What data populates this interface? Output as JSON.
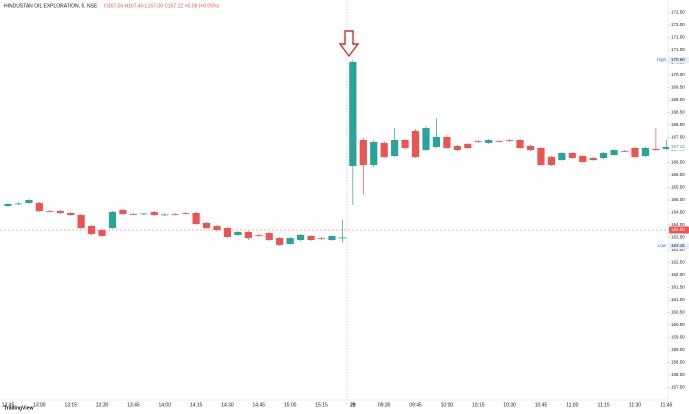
{
  "chart_data": {
    "type": "candlestick",
    "title": "HINDUSTAN OIL EXPLORATION, 5, NSE",
    "ohlc_text": "O167.04 H167.40 L167.00 C167.12 +0.08 (+0.05%)",
    "watermark": "TradingView",
    "up_color": "#26a69a",
    "down_color": "#ef5350",
    "grid": false,
    "categories": [
      "12:45",
      null,
      null,
      "13:00",
      null,
      null,
      "13:15",
      null,
      null,
      "13:30",
      null,
      null,
      "13:45",
      null,
      null,
      "14:00",
      null,
      null,
      "14:15",
      null,
      null,
      "14:30",
      null,
      null,
      "14:45",
      null,
      null,
      "15:00",
      null,
      null,
      "15:15",
      null,
      null,
      "28",
      null,
      null,
      "09:30",
      null,
      null,
      "09:45",
      null,
      null,
      "10:00",
      null,
      null,
      "10:15",
      null,
      null,
      "10:30",
      null,
      null,
      "10:45",
      null,
      null,
      "11:00",
      null,
      null,
      "11:15",
      null,
      null,
      "11:30",
      null,
      null,
      "11:45"
    ],
    "open": [
      164.76,
      164.84,
      164.88,
      164.88,
      164.56,
      164.56,
      164.48,
      164.4,
      163.96,
      163.8,
      163.88,
      164.6,
      164.44,
      164.44,
      164.52,
      164.4,
      164.44,
      164.48,
      164.48,
      164.08,
      163.96,
      163.88,
      163.6,
      163.72,
      163.6,
      163.68,
      163.48,
      163.24,
      163.4,
      163.56,
      163.48,
      163.4,
      163.48,
      166.36,
      167.4,
      166.4,
      167.28,
      166.76,
      167.4,
      167.76,
      167.0,
      167.12,
      167.52,
      167.16,
      167.24,
      167.36,
      167.28,
      167.36,
      167.4,
      167.4,
      167.16,
      167.08,
      166.72,
      166.6,
      166.88,
      166.76,
      166.68,
      166.68,
      166.8,
      166.96,
      167.08,
      166.76,
      167.04,
      167.04
    ],
    "high": [
      164.88,
      164.92,
      165.04,
      164.92,
      164.6,
      164.6,
      164.52,
      164.44,
      164.0,
      163.84,
      164.56,
      164.64,
      164.48,
      164.48,
      164.56,
      164.48,
      164.48,
      164.52,
      164.52,
      164.12,
      164.0,
      163.92,
      163.76,
      163.76,
      163.64,
      163.72,
      163.52,
      163.52,
      163.64,
      163.6,
      163.52,
      163.6,
      164.2,
      170.6,
      167.48,
      167.4,
      167.36,
      167.88,
      167.44,
      167.84,
      167.96,
      168.28,
      167.6,
      167.2,
      167.28,
      167.4,
      167.44,
      167.4,
      167.44,
      167.44,
      167.2,
      167.12,
      166.76,
      166.92,
      166.92,
      166.8,
      166.72,
      166.92,
      167.04,
      167.0,
      167.12,
      167.12,
      167.88,
      167.4
    ],
    "low": [
      164.72,
      164.8,
      164.84,
      164.52,
      164.52,
      164.44,
      164.36,
      163.84,
      163.6,
      163.52,
      163.84,
      164.4,
      164.4,
      164.4,
      164.36,
      164.36,
      164.4,
      164.44,
      164.0,
      163.84,
      163.76,
      163.48,
      163.56,
      163.4,
      163.52,
      163.36,
      163.16,
      163.2,
      163.36,
      163.36,
      163.4,
      163.36,
      163.28,
      164.8,
      165.2,
      166.32,
      166.68,
      166.72,
      167.0,
      166.68,
      166.96,
      167.08,
      167.04,
      166.96,
      167.04,
      167.28,
      167.24,
      167.32,
      167.32,
      167.04,
      166.96,
      166.36,
      166.36,
      166.56,
      166.64,
      166.48,
      166.56,
      166.64,
      166.76,
      166.92,
      166.68,
      166.72,
      166.96,
      167.0
    ],
    "close": [
      164.84,
      164.86,
      165.0,
      164.56,
      164.54,
      164.48,
      164.4,
      163.88,
      163.64,
      163.56,
      164.52,
      164.44,
      164.42,
      164.46,
      164.4,
      164.42,
      164.42,
      164.46,
      164.04,
      163.88,
      163.8,
      163.52,
      163.72,
      163.48,
      163.58,
      163.4,
      163.2,
      163.48,
      163.6,
      163.4,
      163.46,
      163.56,
      163.5,
      170.52,
      166.4,
      167.32,
      166.72,
      167.4,
      167.08,
      166.72,
      167.88,
      167.52,
      167.08,
      167.0,
      167.08,
      167.34,
      167.4,
      167.34,
      167.38,
      167.08,
      167.0,
      166.4,
      166.4,
      166.88,
      166.68,
      166.52,
      166.6,
      166.88,
      167.0,
      166.94,
      166.72,
      167.08,
      167.0,
      167.12
    ],
    "ylim": [
      157.0,
      173.0
    ],
    "yticks": [
      {
        "value": 172.5,
        "label": "172.50"
      },
      {
        "value": 172,
        "label": "172.00"
      },
      {
        "value": 171.5,
        "label": "171.50"
      },
      {
        "value": 171,
        "label": "171.00"
      },
      {
        "value": 170.5,
        "label": "170.50"
      },
      {
        "value": 170,
        "label": "170.00"
      },
      {
        "value": 169.5,
        "label": "169.50"
      },
      {
        "value": 169,
        "label": "169.00"
      },
      {
        "value": 168.5,
        "label": "168.50"
      },
      {
        "value": 168,
        "label": "168.00"
      },
      {
        "value": 167.5,
        "label": "167.50"
      },
      {
        "value": 167,
        "label": "167.00"
      },
      {
        "value": 166.5,
        "label": "166.50"
      },
      {
        "value": 166,
        "label": "166.00"
      },
      {
        "value": 165.5,
        "label": "165.50"
      },
      {
        "value": 165,
        "label": "165.00"
      },
      {
        "value": 164.5,
        "label": "164.50"
      },
      {
        "value": 164,
        "label": "164.00"
      },
      {
        "value": 163.5,
        "label": "163.50"
      },
      {
        "value": 163,
        "label": "163.00"
      },
      {
        "value": 162.5,
        "label": "162.50"
      },
      {
        "value": 162,
        "label": "162.00"
      },
      {
        "value": 161.5,
        "label": "161.50"
      },
      {
        "value": 161,
        "label": "161.00"
      },
      {
        "value": 160.5,
        "label": "160.50"
      },
      {
        "value": 160,
        "label": "160.00"
      },
      {
        "value": 159.5,
        "label": "159.50"
      },
      {
        "value": 159,
        "label": "159.00"
      },
      {
        "value": 158.5,
        "label": "158.50"
      },
      {
        "value": 158,
        "label": "158.00"
      },
      {
        "value": 157.5,
        "label": "157.50"
      }
    ],
    "high_marker": {
      "name": "High",
      "value": 170.6,
      "value_label": "170.60"
    },
    "low_marker": {
      "name": "Low",
      "value": 163.16,
      "value_label": "163.16"
    },
    "price_line": {
      "value": 163.8,
      "value_label": "163.80",
      "color": "#ef5350"
    },
    "last_price": {
      "value": 167.12,
      "value_label": "167.12",
      "color": "#26a69a"
    }
  }
}
